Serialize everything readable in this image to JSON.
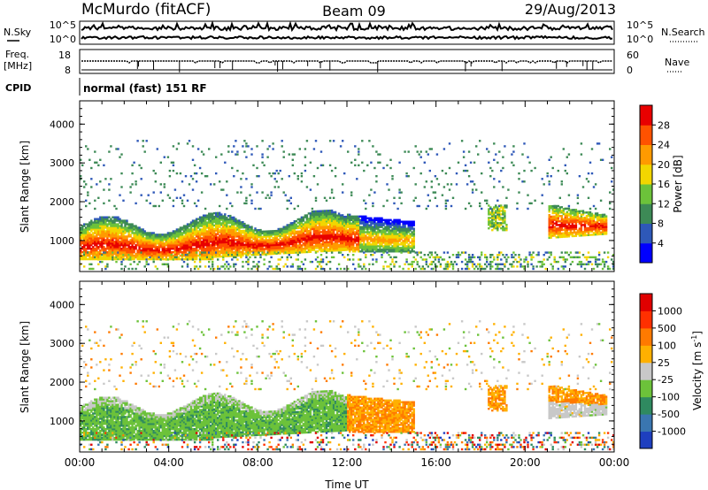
{
  "header": {
    "station": "McMurdo (fitACF)",
    "beam": "Beam 09",
    "date": "29/Aug/2013"
  },
  "strips": {
    "nsky_label": "N.Sky",
    "nsearch_label": "N.Search",
    "noise_ticks": [
      "10^5",
      "10^0"
    ],
    "freq_label": "Freq.",
    "freq_unit": "[MHz]",
    "freq_ticks": [
      "18",
      "8"
    ],
    "nave_label": "Nave",
    "nave_ticks": [
      "60",
      "0"
    ],
    "cpid_label": "CPID",
    "cpid_value": "normal (fast) 151 RF"
  },
  "chart_data": [
    {
      "type": "heatmap",
      "name": "power",
      "ylabel": "Slant Range [km]",
      "ylim": [
        200,
        4600
      ],
      "xlim": [
        0,
        24
      ],
      "yticks": [
        "1000",
        "2000",
        "3000",
        "4000"
      ],
      "colorbar": {
        "label": "Power [dB]",
        "ticks": [
          "28",
          "24",
          "20",
          "16",
          "12",
          "8",
          "4"
        ],
        "colors": [
          "#0000ff",
          "#2e58b8",
          "#3d8a56",
          "#6cc23a",
          "#f2d600",
          "#ff9a00",
          "#ff5200",
          "#e80000"
        ]
      },
      "approx_range_pattern_km": {
        "main_band": [
          500,
          1600
        ],
        "peak_band_center": 800,
        "scatter_max": 3600
      }
    },
    {
      "type": "heatmap",
      "name": "velocity",
      "ylabel": "Slant Range [km]",
      "xlabel": "Time UT",
      "ylim": [
        200,
        4600
      ],
      "xlim": [
        0,
        24
      ],
      "xticks": [
        "00:00",
        "04:00",
        "08:00",
        "12:00",
        "16:00",
        "20:00",
        "00:00"
      ],
      "yticks": [
        "1000",
        "2000",
        "3000",
        "4000"
      ],
      "colorbar": {
        "label": "Velocity [m s",
        "label_sup": "-1",
        "label_end": "]",
        "ticks": [
          "1000",
          "500",
          "100",
          "25",
          "-25",
          "-100",
          "-500",
          "-1000"
        ],
        "colors": [
          "#1e3fbf",
          "#3a76b0",
          "#2f8a60",
          "#6cc23a",
          "#c8c8c8",
          "#ffb000",
          "#ff7a00",
          "#ff3000",
          "#e00000"
        ]
      }
    }
  ]
}
